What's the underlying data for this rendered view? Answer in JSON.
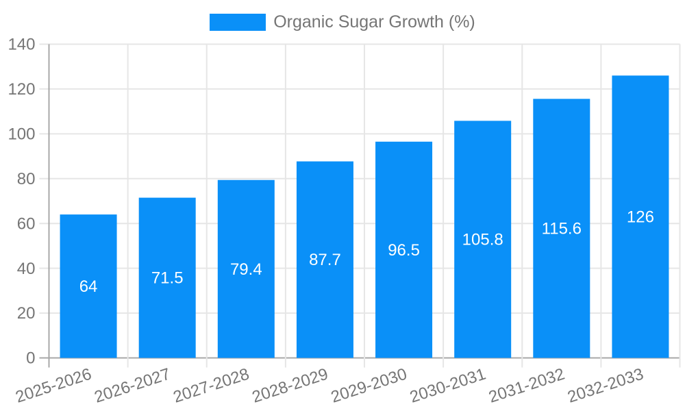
{
  "legend": {
    "label": "Organic Sugar Growth (%)"
  },
  "colors": {
    "bar": "#0a90f8",
    "bar_value_label": "#ffffff",
    "axis_text": "#757575",
    "grid_line": "#e6e6e6",
    "zero_line": "#a8a8a8",
    "background": "#ffffff"
  },
  "chart_data": {
    "type": "bar",
    "title": "Organic Sugar Growth (%)",
    "categories": [
      "2025-2026",
      "2026-2027",
      "2027-2028",
      "2028-2029",
      "2029-2030",
      "2030-2031",
      "2031-2032",
      "2032-2033"
    ],
    "series": [
      {
        "name": "Organic Sugar Growth (%)",
        "values": [
          64,
          71.5,
          79.4,
          87.7,
          96.5,
          105.8,
          115.6,
          126
        ]
      }
    ],
    "value_labels": [
      "64",
      "71.5",
      "79.4",
      "87.7",
      "96.5",
      "105.8",
      "115.6",
      "126"
    ],
    "xlabel": "",
    "ylabel": "",
    "ylim": [
      0,
      140
    ],
    "yticks": [
      0,
      20,
      40,
      60,
      80,
      100,
      120,
      140
    ],
    "grid": true,
    "legend_position": "top",
    "x_tick_rotation_deg": -18,
    "bar_value_label_position": "center-inside"
  }
}
